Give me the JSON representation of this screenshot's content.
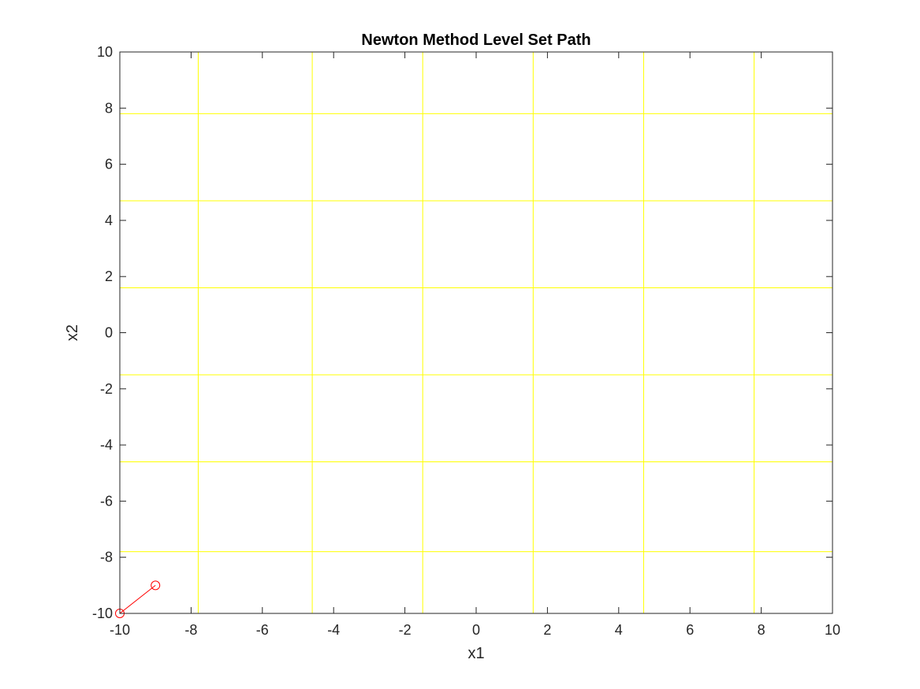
{
  "chart_data": {
    "type": "line",
    "title": "Newton Method Level Set Path",
    "xlabel": "x1",
    "ylabel": "x2",
    "xlim": [
      -10,
      10
    ],
    "ylim": [
      -10,
      10
    ],
    "xticks": [
      -10,
      -8,
      -6,
      -4,
      -2,
      0,
      2,
      4,
      6,
      8,
      10
    ],
    "yticks": [
      -10,
      -8,
      -6,
      -4,
      -2,
      0,
      2,
      4,
      6,
      8,
      10
    ],
    "grid": false,
    "contour": {
      "color": "#ffff00",
      "x_levels": [
        -7.8,
        -4.6,
        -1.5,
        1.6,
        4.7,
        7.8
      ],
      "y_levels": [
        7.8,
        4.7,
        1.6,
        -1.5,
        -4.6,
        -7.8
      ]
    },
    "series": [
      {
        "color": "#ff0000",
        "marker": "circle",
        "points": [
          [
            -10,
            -10
          ],
          [
            -9,
            -9
          ]
        ]
      }
    ]
  }
}
